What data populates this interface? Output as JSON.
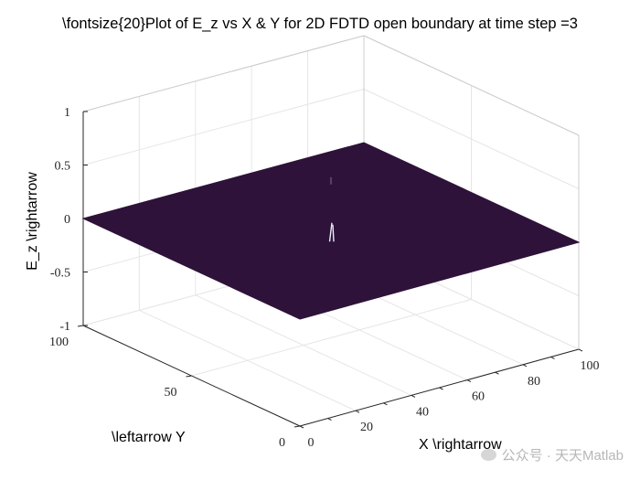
{
  "chart_data": {
    "type": "surface",
    "title": "\\fontsize{20}Plot of E_z vs X & Y for 2D FDTD open boundary at time step =3",
    "xlabel": "X \\rightarrow",
    "ylabel": "\\leftarrow Y",
    "zlabel": "E_z \\rightarrow",
    "xlim": [
      0,
      100
    ],
    "ylim": [
      0,
      100
    ],
    "zlim": [
      -1,
      1
    ],
    "x_ticks": [
      "0",
      "20",
      "40",
      "60",
      "80",
      "100"
    ],
    "y_ticks": [
      "0",
      "50",
      "100"
    ],
    "z_ticks": [
      "-1",
      "-0.5",
      "0",
      "0.5",
      "1"
    ],
    "surface_value": 0,
    "peak": {
      "x": 50,
      "y": 50,
      "value": 0.5
    },
    "grid": true,
    "surface_color": "#2e1239",
    "colormap": "parula"
  },
  "watermark": "公众号 · 天天Matlab"
}
